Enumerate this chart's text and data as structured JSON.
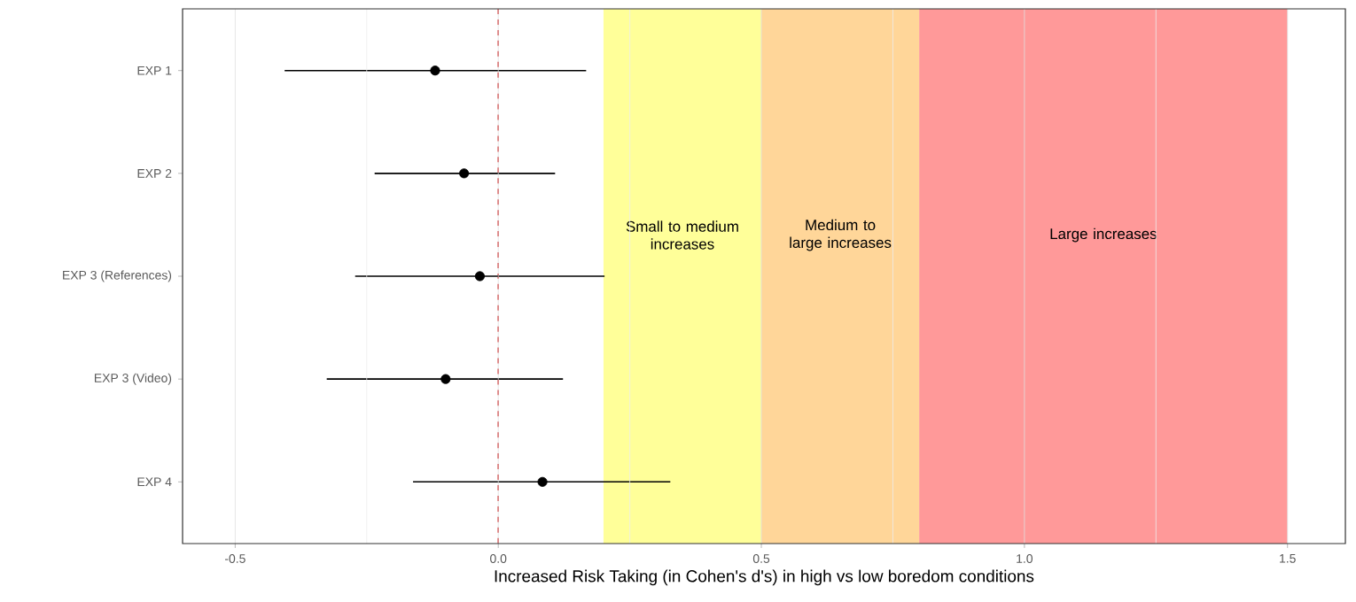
{
  "chart_data": {
    "type": "scatter",
    "orientation": "horizontal",
    "xlabel": "Increased Risk Taking (in Cohen's d's) in high vs low boredom conditions",
    "categories": [
      "EXP 1",
      "EXP 2",
      "EXP 3 (References)",
      "EXP 3 (Video)",
      "EXP 4"
    ],
    "values": [
      -0.12,
      -0.065,
      -0.035,
      -0.1,
      0.084
    ],
    "errors": [
      [
        -0.406,
        0.167
      ],
      [
        -0.235,
        0.108
      ],
      [
        -0.272,
        0.202
      ],
      [
        -0.326,
        0.123
      ],
      [
        -0.162,
        0.327
      ]
    ],
    "color": "#000000",
    "xlim": [
      -0.6,
      1.61
    ],
    "xticks": [
      {
        "value": -0.5,
        "label": "-0.5"
      },
      {
        "value": 0,
        "label": "0.0"
      },
      {
        "value": 0.5,
        "label": "0.5"
      },
      {
        "value": 1,
        "label": "1.0"
      },
      {
        "value": 1.5,
        "label": "1.5"
      }
    ],
    "grid": "x",
    "ref_lines": [
      {
        "axis": "x",
        "value": 0,
        "color": "#cc0000",
        "line_style": "dashed"
      }
    ],
    "bands": [
      {
        "axis": "x",
        "from": 0.2,
        "to": 0.5,
        "label": "Small to medium increases",
        "color": "#ffff99"
      },
      {
        "axis": "x",
        "from": 0.5,
        "to": 0.8,
        "label": "Medium to large increases",
        "color": "#ffd699"
      },
      {
        "axis": "x",
        "from": 0.8,
        "to": 1.5,
        "label": "Large increases",
        "color": "#ff9999"
      }
    ]
  }
}
